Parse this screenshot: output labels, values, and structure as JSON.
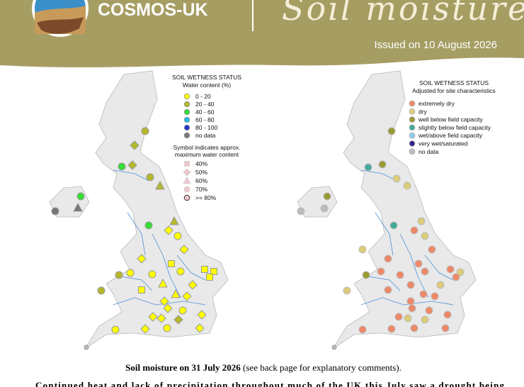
{
  "header": {
    "org": "COSMOS-UK",
    "title": "Soil moisture",
    "issued": "Issued on 10 August 2026"
  },
  "left_legend": {
    "title": "SOIL WETNESS STATUS",
    "subtitle": "Water content (%)",
    "items": [
      "0 - 20",
      "20 - 40",
      "40 - 60",
      "60 - 80",
      "80 - 100",
      "no data"
    ],
    "symbol_title": [
      "Symbol indicates approx.",
      "maximum water content"
    ],
    "symbols": [
      "40%",
      "50%",
      "60%",
      "70%",
      ">= 80%"
    ]
  },
  "right_legend": {
    "title": "SOIL WETNESS STATUS",
    "subtitle": "Adjusted for site characteristics",
    "items": [
      "extremely dry",
      "dry",
      "well below field capacity",
      "slightly below field capacity",
      "wet/above field capacity",
      "very wet/saturated",
      "no data"
    ]
  },
  "caption": {
    "bold": "Soil moisture on 31 July 2026",
    "rest": " (see back page for explanatory comments)."
  },
  "paragraph": "Continued heat and lack of precipitation throughout much of the UK this July saw a drought being"
}
